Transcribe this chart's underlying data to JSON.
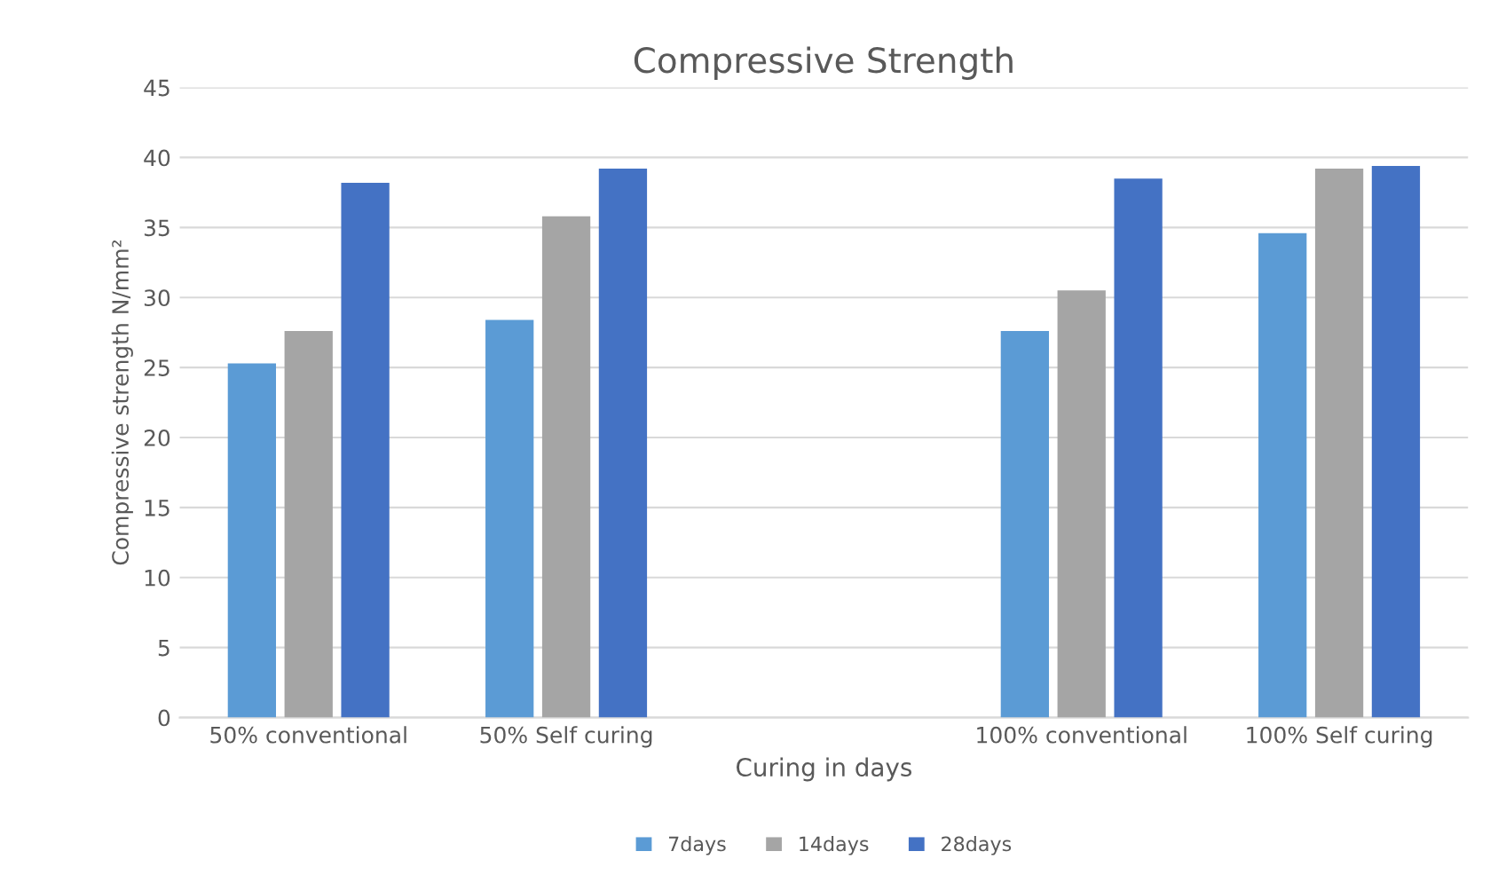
{
  "chart_data": {
    "type": "bar",
    "title": "Compressive Strength",
    "xlabel": "Curing in days",
    "ylabel": "Compressive strength N/mm²",
    "categories": [
      "50% conventional",
      "50% Self curing",
      null,
      "100% conventional",
      "100% Self curing"
    ],
    "series": [
      {
        "name": "7days",
        "color": "#5b9bd5",
        "values": [
          25.3,
          28.4,
          null,
          27.6,
          34.6
        ]
      },
      {
        "name": "14days",
        "color": "#a5a5a5",
        "values": [
          27.6,
          35.8,
          null,
          30.5,
          39.2
        ]
      },
      {
        "name": "28days",
        "color": "#4472c4",
        "values": [
          38.2,
          39.2,
          null,
          38.5,
          39.4
        ]
      }
    ],
    "ylim": [
      0,
      45
    ],
    "yticks": [
      0,
      5,
      10,
      15,
      20,
      25,
      30,
      35,
      40,
      45
    ],
    "grid": "y",
    "legend": "bottom"
  }
}
